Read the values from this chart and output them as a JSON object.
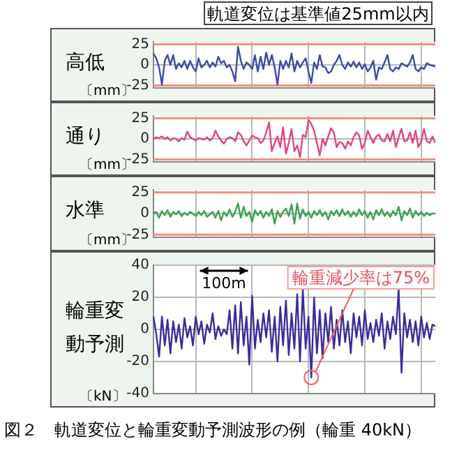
{
  "chart_data": [
    {
      "type": "line",
      "title": "軌道変位は基準値25mm以内",
      "ylabel": "高低",
      "annotations": [
        "〔mm〕"
      ],
      "color": "#3b4ba6",
      "grid": true,
      "tick_labels": "y",
      "ylim": [
        -28,
        28
      ],
      "yticks": [
        -25,
        0,
        25
      ],
      "ref_lines": [
        {
          "axis": "y",
          "value": 25,
          "color": "#f0907c"
        },
        {
          "axis": "y",
          "value": -25,
          "color": "#f0907c"
        }
      ],
      "categories": [
        null,
        null,
        null,
        null,
        null,
        null,
        null,
        null,
        null,
        null,
        null,
        null,
        null,
        null,
        null,
        null,
        null,
        null,
        null,
        null,
        null,
        null,
        null,
        null,
        null,
        null,
        null,
        null,
        null,
        null,
        null,
        null,
        null,
        null,
        null,
        null,
        null,
        null,
        null,
        null,
        null,
        null,
        null,
        null,
        null,
        null,
        null,
        null,
        null,
        null,
        null,
        null,
        null,
        null,
        null,
        null,
        null,
        null,
        null,
        null,
        null,
        null,
        null,
        null,
        null,
        null,
        null,
        null,
        null,
        null,
        null,
        null,
        null,
        null,
        null,
        null,
        null,
        null,
        null,
        null,
        null,
        null,
        null,
        null,
        null,
        null,
        null,
        null,
        null,
        null,
        null,
        null,
        null,
        null,
        null,
        null,
        null,
        null,
        null,
        null,
        null
      ],
      "values": [
        14,
        8,
        -3,
        -24,
        5,
        12,
        0,
        12,
        -5,
        2,
        -3,
        5,
        -5,
        5,
        -3,
        -8,
        8,
        -3,
        0,
        5,
        -3,
        3,
        -2,
        10,
        2,
        5,
        -3,
        0,
        -8,
        -20,
        22,
        5,
        -5,
        3,
        0,
        -5,
        12,
        -8,
        10,
        -5,
        15,
        0,
        12,
        -3,
        -24,
        5,
        -5,
        5,
        -3,
        14,
        -8,
        5,
        -3,
        3,
        8,
        -8,
        -22,
        3,
        -5,
        12,
        -2,
        -3,
        -10,
        -8,
        0,
        5,
        12,
        0,
        -5,
        3,
        -2,
        4,
        -3,
        3,
        -5,
        1,
        -8,
        -3,
        5,
        -18,
        -3,
        -5,
        3,
        12,
        -5,
        -8,
        -3,
        -5,
        2,
        0,
        -2,
        3,
        12,
        -5,
        -8,
        -3,
        -5,
        2,
        0,
        -1,
        -2
      ]
    },
    {
      "type": "line",
      "ylabel": "通り",
      "annotations": [
        "〔mm〕"
      ],
      "color": "#e0457e",
      "grid": true,
      "tick_labels": "y",
      "ylim": [
        -28,
        28
      ],
      "yticks": [
        -25,
        0,
        25
      ],
      "ref_lines": [
        {
          "axis": "y",
          "value": 25,
          "color": "#f0907c"
        },
        {
          "axis": "y",
          "value": -25,
          "color": "#f0907c"
        }
      ],
      "categories": [
        null,
        null,
        null,
        null,
        null,
        null,
        null,
        null,
        null,
        null,
        null,
        null,
        null,
        null,
        null,
        null,
        null,
        null,
        null,
        null,
        null,
        null,
        null,
        null,
        null,
        null,
        null,
        null,
        null,
        null,
        null,
        null,
        null,
        null,
        null,
        null,
        null,
        null,
        null,
        null,
        null,
        null,
        null,
        null,
        null,
        null,
        null,
        null,
        null,
        null,
        null,
        null,
        null,
        null,
        null,
        null,
        null,
        null,
        null,
        null,
        null,
        null,
        null,
        null,
        null,
        null,
        null,
        null,
        null,
        null,
        null,
        null,
        null,
        null,
        null,
        null,
        null,
        null,
        null,
        null,
        null,
        null,
        null,
        null,
        null,
        null,
        null,
        null,
        null,
        null,
        null,
        null,
        null,
        null,
        null,
        null,
        null,
        null,
        null,
        null,
        null
      ],
      "values": [
        0,
        2,
        1,
        3,
        0,
        2,
        -2,
        1,
        0,
        -3,
        1,
        -1,
        9,
        2,
        0,
        -2,
        1,
        0,
        -1,
        2,
        -2,
        1,
        10,
        3,
        -2,
        -6,
        0,
        2,
        1,
        -3,
        8,
        5,
        -3,
        -8,
        -2,
        4,
        2,
        1,
        -5,
        -2,
        8,
        20,
        -15,
        -5,
        3,
        -10,
        14,
        -18,
        -5,
        12,
        -15,
        -8,
        -22,
        5,
        2,
        23,
        18,
        10,
        -5,
        -20,
        0,
        -8,
        3,
        13,
        8,
        -10,
        -4,
        -5,
        -12,
        -3,
        -8,
        2,
        8,
        4,
        -12,
        -5,
        10,
        2,
        -5,
        3,
        5,
        -2,
        -3,
        6,
        -3,
        10,
        -10,
        2,
        12,
        -3,
        -2,
        8,
        -5,
        10,
        -10,
        -3,
        12,
        -3,
        -5,
        3,
        -5
      ]
    },
    {
      "type": "line",
      "ylabel": "水準",
      "annotations": [
        "〔mm〕"
      ],
      "color": "#3aa052",
      "grid": true,
      "tick_labels": "y",
      "ylim": [
        -28,
        28
      ],
      "yticks": [
        -25,
        0,
        25
      ],
      "ref_lines": [
        {
          "axis": "y",
          "value": 25,
          "color": "#f0907c"
        },
        {
          "axis": "y",
          "value": -25,
          "color": "#f0907c"
        }
      ],
      "categories": [
        null,
        null,
        null,
        null,
        null,
        null,
        null,
        null,
        null,
        null,
        null,
        null,
        null,
        null,
        null,
        null,
        null,
        null,
        null,
        null,
        null,
        null,
        null,
        null,
        null,
        null,
        null,
        null,
        null,
        null,
        null,
        null,
        null,
        null,
        null,
        null,
        null,
        null,
        null,
        null,
        null,
        null,
        null,
        null,
        null,
        null,
        null,
        null,
        null,
        null,
        null,
        null,
        null,
        null,
        null,
        null,
        null,
        null,
        null,
        null,
        null,
        null,
        null,
        null,
        null,
        null,
        null,
        null,
        null,
        null,
        null,
        null,
        null,
        null,
        null,
        null,
        null,
        null,
        null,
        null,
        null,
        null,
        null,
        null,
        null,
        null,
        null,
        null,
        null,
        null,
        null,
        null,
        null,
        null,
        null,
        null,
        null,
        null,
        null,
        null,
        null
      ],
      "values": [
        0,
        2,
        -5,
        3,
        -2,
        4,
        -4,
        2,
        -1,
        3,
        -3,
        1,
        -2,
        2,
        0,
        -3,
        2,
        -2,
        3,
        -4,
        -1,
        2,
        -5,
        3,
        -8,
        2,
        -3,
        5,
        -4,
        2,
        12,
        -5,
        8,
        -3,
        2,
        -10,
        4,
        -2,
        3,
        -5,
        2,
        -3,
        5,
        -12,
        3,
        -4,
        2,
        6,
        -3,
        11,
        -12,
        12,
        -6,
        5,
        -3,
        2,
        -5,
        3,
        -2,
        4,
        -3,
        2,
        -7,
        3,
        -2,
        4,
        -3,
        5,
        -2,
        3,
        -4,
        2,
        -3,
        5,
        -2,
        3,
        -5,
        2,
        -7,
        4,
        -2,
        5,
        -3,
        2,
        -4,
        3,
        -2,
        8,
        -8,
        3,
        -2,
        6,
        -5,
        3,
        -2,
        2,
        -3,
        1,
        -2,
        0,
        0
      ]
    },
    {
      "type": "line",
      "ylabel": "輪重変動予測",
      "annotations": [
        "〔kN〕",
        "100m",
        "輪重減少率は75%",
        "図２　軌道変位と輪重変動予測波形の例（輪重 40kN）"
      ],
      "color": "#3b2c9a",
      "grid": true,
      "tick_labels": "y",
      "ylim": [
        -40,
        40
      ],
      "yticks": [
        -40,
        -20,
        0,
        20,
        40
      ],
      "categories": [
        null,
        null,
        null,
        null,
        null,
        null,
        null,
        null,
        null,
        null,
        null,
        null,
        null,
        null,
        null,
        null,
        null,
        null,
        null,
        null,
        null,
        null,
        null,
        null,
        null,
        null,
        null,
        null,
        null,
        null,
        null,
        null,
        null,
        null,
        null,
        null,
        null,
        null,
        null,
        null,
        null,
        null,
        null,
        null,
        null,
        null,
        null,
        null,
        null,
        null,
        null,
        null,
        null,
        null,
        null,
        null,
        null,
        null,
        null,
        null,
        null,
        null,
        null,
        null,
        null,
        null,
        null,
        null,
        null,
        null,
        null,
        null,
        null,
        null,
        null,
        null,
        null,
        null,
        null,
        null,
        null,
        null,
        null,
        null,
        null,
        null,
        null,
        null,
        null,
        null,
        null,
        null,
        null,
        null,
        null,
        null,
        null,
        null,
        null,
        null,
        null
      ],
      "values": [
        8,
        -3,
        -17,
        8,
        -10,
        6,
        -15,
        5,
        -8,
        3,
        -12,
        7,
        -5,
        2,
        -10,
        8,
        -3,
        5,
        -9,
        3,
        -2,
        10,
        -6,
        2,
        -4,
        0,
        -3,
        12,
        -12,
        15,
        -15,
        17,
        -10,
        8,
        -22,
        21,
        -12,
        6,
        -8,
        10,
        -5,
        12,
        -14,
        8,
        -20,
        14,
        -10,
        18,
        -16,
        10,
        -12,
        22,
        -20,
        25,
        -12,
        8,
        -30,
        20,
        -15,
        12,
        -18,
        10,
        -8,
        14,
        -12,
        6,
        -10,
        12,
        -8,
        5,
        -15,
        10,
        -5,
        8,
        -10,
        12,
        -6,
        4,
        -8,
        6,
        -4,
        10,
        -12,
        5,
        -6,
        8,
        -3,
        25,
        -27,
        10,
        -5,
        6,
        -8,
        5,
        -10,
        8,
        -5,
        4,
        -6,
        3,
        2
      ]
    }
  ]
}
